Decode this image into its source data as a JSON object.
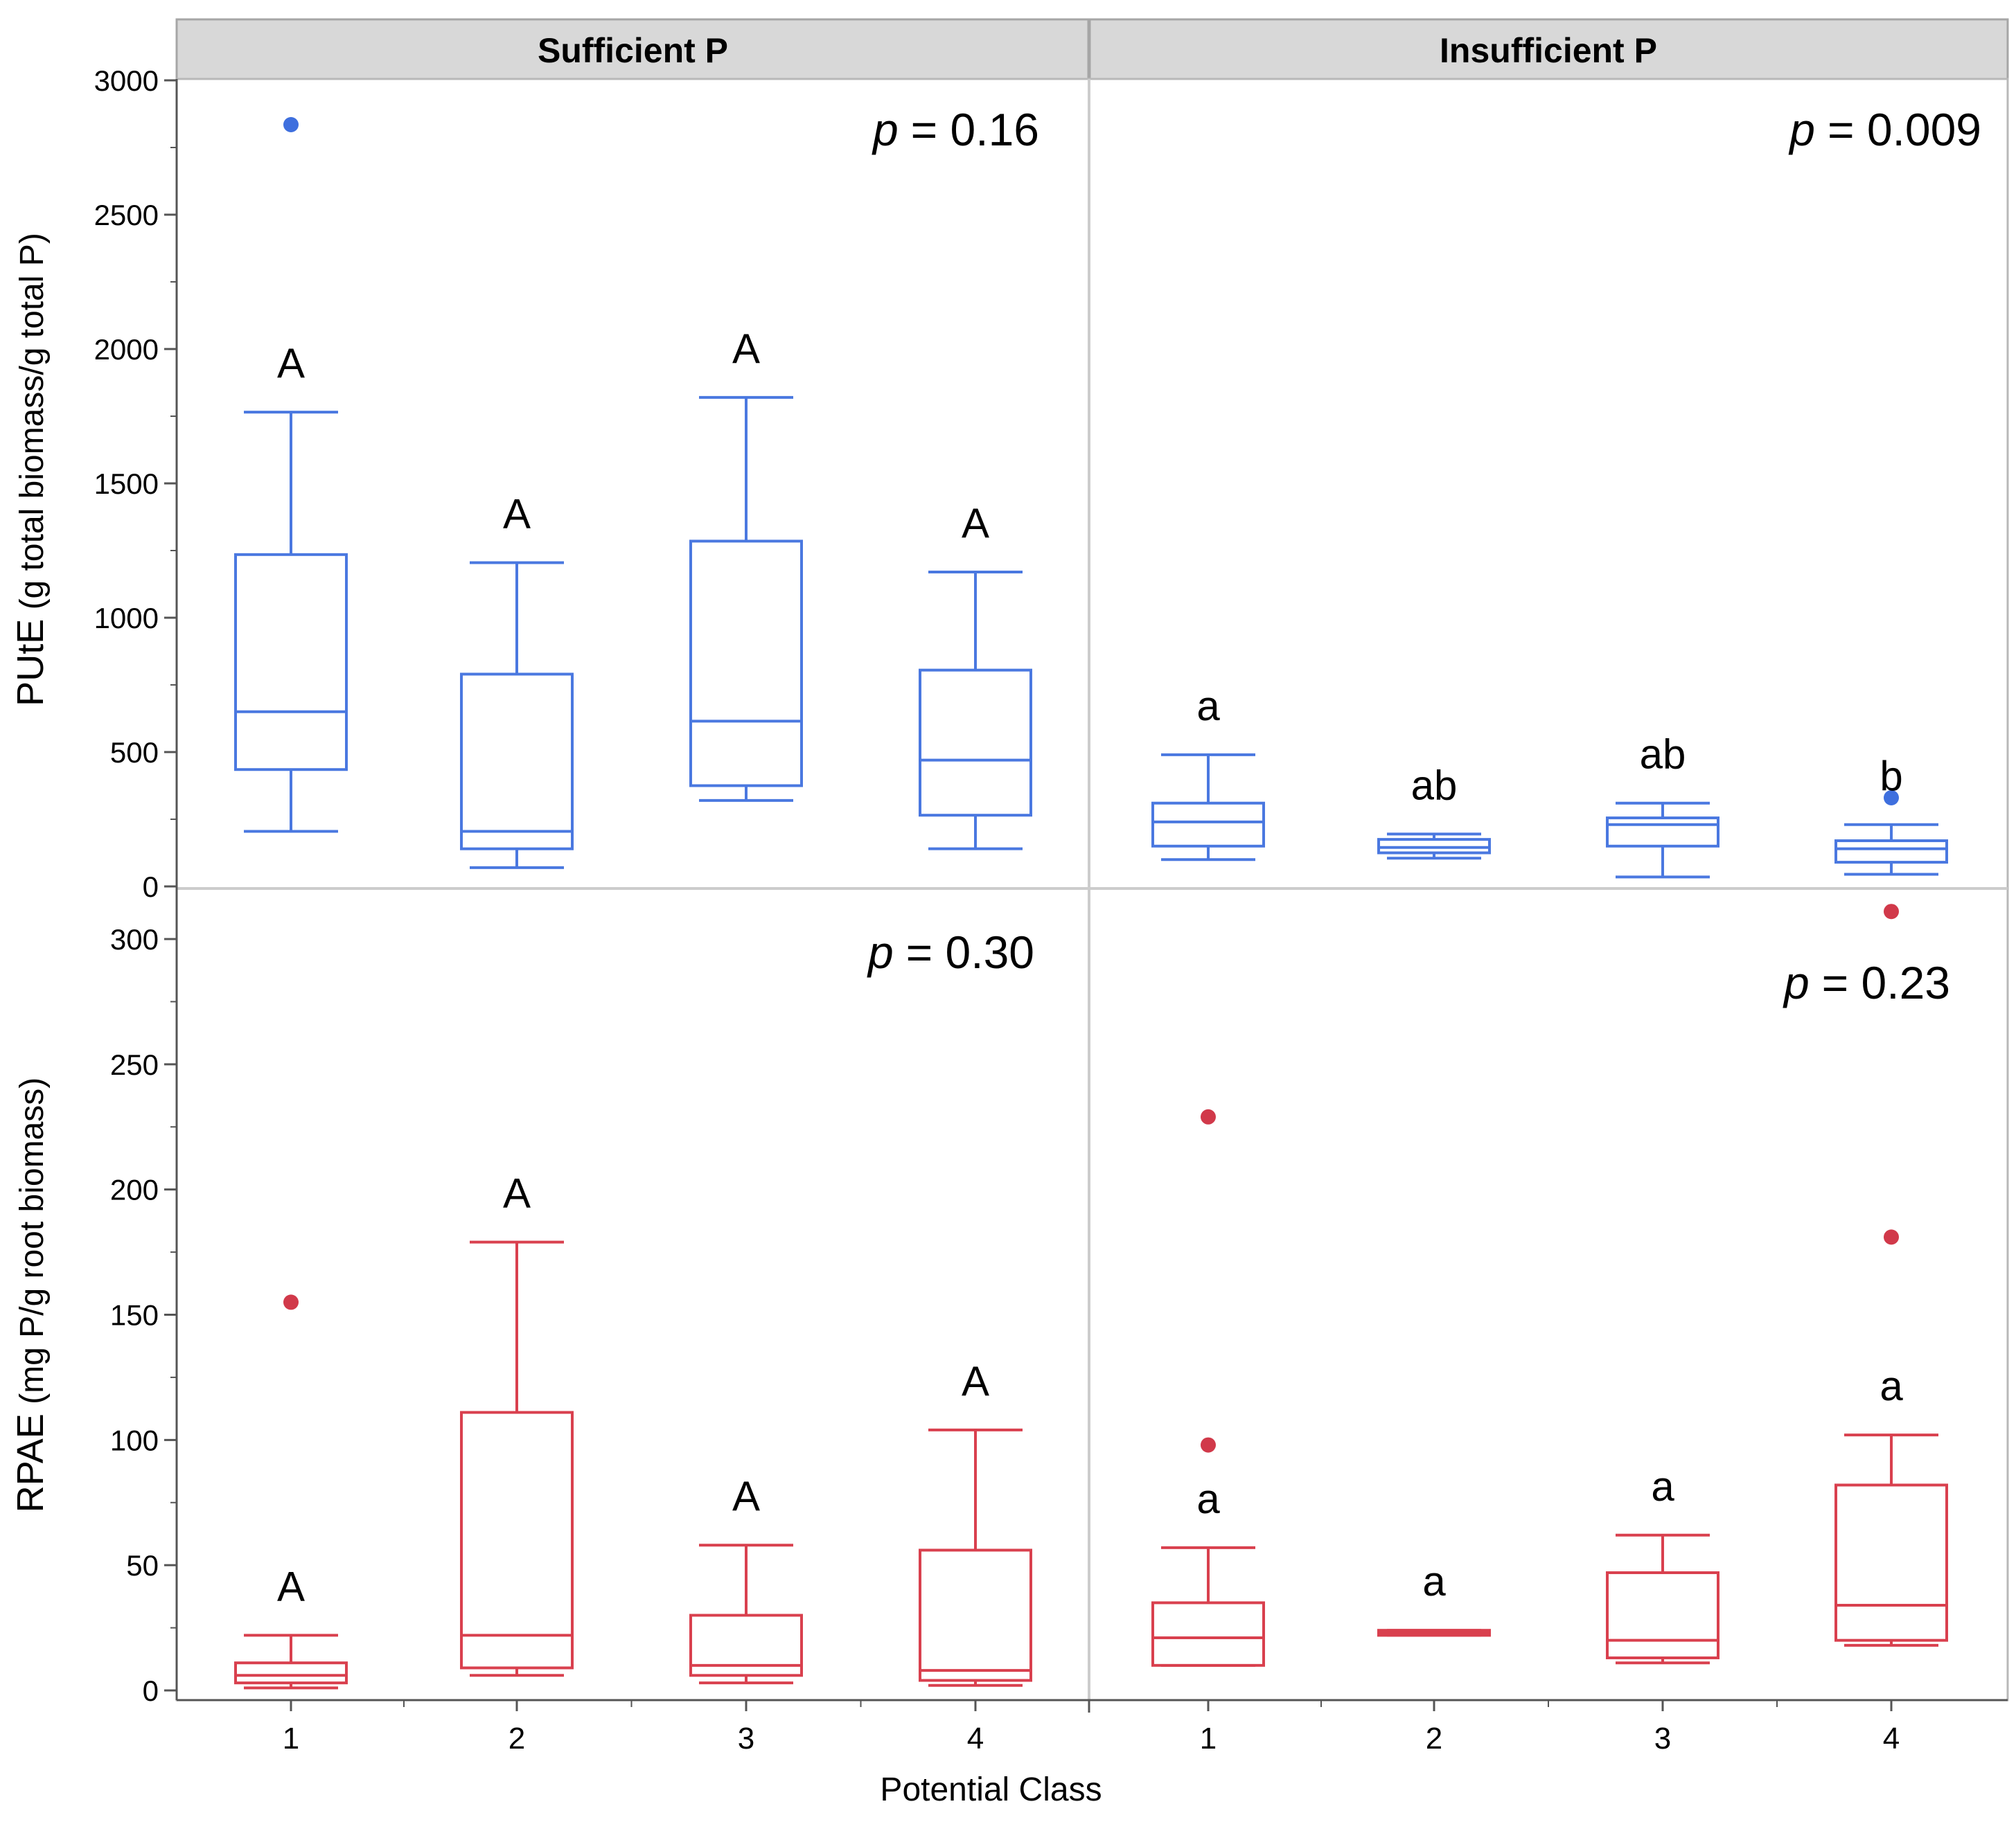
{
  "colors": {
    "top": "#4a78e0",
    "top_outlier": "#3e6fde",
    "bottom": "#d9404e",
    "bottom_outlier": "#d1394a",
    "strip": "#d8d8d8",
    "divider": "#cccccc",
    "axis": "#555555"
  },
  "chart_data": {
    "type": "box",
    "x_label": "Potential Class",
    "categories": [
      "1",
      "2",
      "3",
      "4"
    ],
    "facets": [
      "Sufficient P",
      "Insufficient P"
    ],
    "panels": [
      {
        "id": "top",
        "ylabel_lead": "PUtE",
        "ylabel_rest": " (g total biomass/g total P)",
        "ylim": [
          0,
          3000
        ],
        "yticks": [
          0,
          500,
          1000,
          1500,
          2000,
          2500,
          3000
        ],
        "color_key": "top",
        "outlier_color_key": "top_outlier",
        "cells": [
          {
            "facet": "Sufficient P",
            "p_label": "p",
            "p_value": "= 0.16",
            "boxes": [
              {
                "class": "1",
                "min": 205,
                "q1": 435,
                "median": 650,
                "q3": 1235,
                "max": 1765,
                "letter": "A",
                "outliers": [
                  2835
                ]
              },
              {
                "class": "2",
                "min": 70,
                "q1": 140,
                "median": 205,
                "q3": 790,
                "max": 1205,
                "letter": "A",
                "outliers": []
              },
              {
                "class": "3",
                "min": 320,
                "q1": 375,
                "median": 615,
                "q3": 1285,
                "max": 1820,
                "letter": "A",
                "outliers": []
              },
              {
                "class": "4",
                "min": 140,
                "q1": 265,
                "median": 470,
                "q3": 805,
                "max": 1170,
                "letter": "A",
                "outliers": []
              }
            ]
          },
          {
            "facet": "Insufficient P",
            "p_label": "p",
            "p_value": "= 0.009",
            "boxes": [
              {
                "class": "1",
                "min": 100,
                "q1": 150,
                "median": 240,
                "q3": 310,
                "max": 490,
                "letter": "a",
                "outliers": []
              },
              {
                "class": "2",
                "min": 105,
                "q1": 125,
                "median": 145,
                "q3": 175,
                "max": 195,
                "letter": "ab",
                "outliers": []
              },
              {
                "class": "3",
                "min": 35,
                "q1": 150,
                "median": 230,
                "q3": 255,
                "max": 310,
                "letter": "ab",
                "outliers": []
              },
              {
                "class": "4",
                "min": 45,
                "q1": 90,
                "median": 140,
                "q3": 170,
                "max": 230,
                "letter": "b",
                "outliers": [
                  330
                ]
              }
            ]
          }
        ]
      },
      {
        "id": "bottom",
        "ylabel_lead": "RPAE",
        "ylabel_rest": " (mg P/g root biomass)",
        "ylim": [
          -5,
          310
        ],
        "yticks": [
          0,
          50,
          100,
          150,
          200,
          250,
          300
        ],
        "color_key": "bottom",
        "outlier_color_key": "bottom_outlier",
        "cells": [
          {
            "facet": "Sufficient P",
            "p_label": "p",
            "p_value": "= 0.30",
            "boxes": [
              {
                "class": "1",
                "min": 1,
                "q1": 3,
                "median": 6,
                "q3": 11,
                "max": 22,
                "letter": "A",
                "outliers": [
                  155
                ]
              },
              {
                "class": "2",
                "min": 6,
                "q1": 9,
                "median": 22,
                "q3": 111,
                "max": 179,
                "letter": "A",
                "outliers": []
              },
              {
                "class": "3",
                "min": 3,
                "q1": 6,
                "median": 10,
                "q3": 30,
                "max": 58,
                "letter": "A",
                "outliers": []
              },
              {
                "class": "4",
                "min": 2,
                "q1": 4,
                "median": 8,
                "q3": 56,
                "max": 104,
                "letter": "A",
                "outliers": []
              }
            ]
          },
          {
            "facet": "Insufficient P",
            "p_label": "p",
            "p_value": "= 0.23",
            "boxes": [
              {
                "class": "1",
                "min": 10,
                "q1": 10,
                "median": 21,
                "q3": 35,
                "max": 57,
                "letter": "a",
                "outliers": [
                  98,
                  229
                ]
              },
              {
                "class": "2",
                "min": 22,
                "q1": 22,
                "median": 23,
                "q3": 24,
                "max": 24,
                "letter": "a",
                "outliers": []
              },
              {
                "class": "3",
                "min": 11,
                "q1": 13,
                "median": 20,
                "q3": 47,
                "max": 62,
                "letter": "a",
                "outliers": []
              },
              {
                "class": "4",
                "min": 18,
                "q1": 20,
                "median": 34,
                "q3": 82,
                "max": 102,
                "letter": "a",
                "outliers": [
                  181,
                  311
                ]
              }
            ]
          }
        ]
      }
    ]
  }
}
